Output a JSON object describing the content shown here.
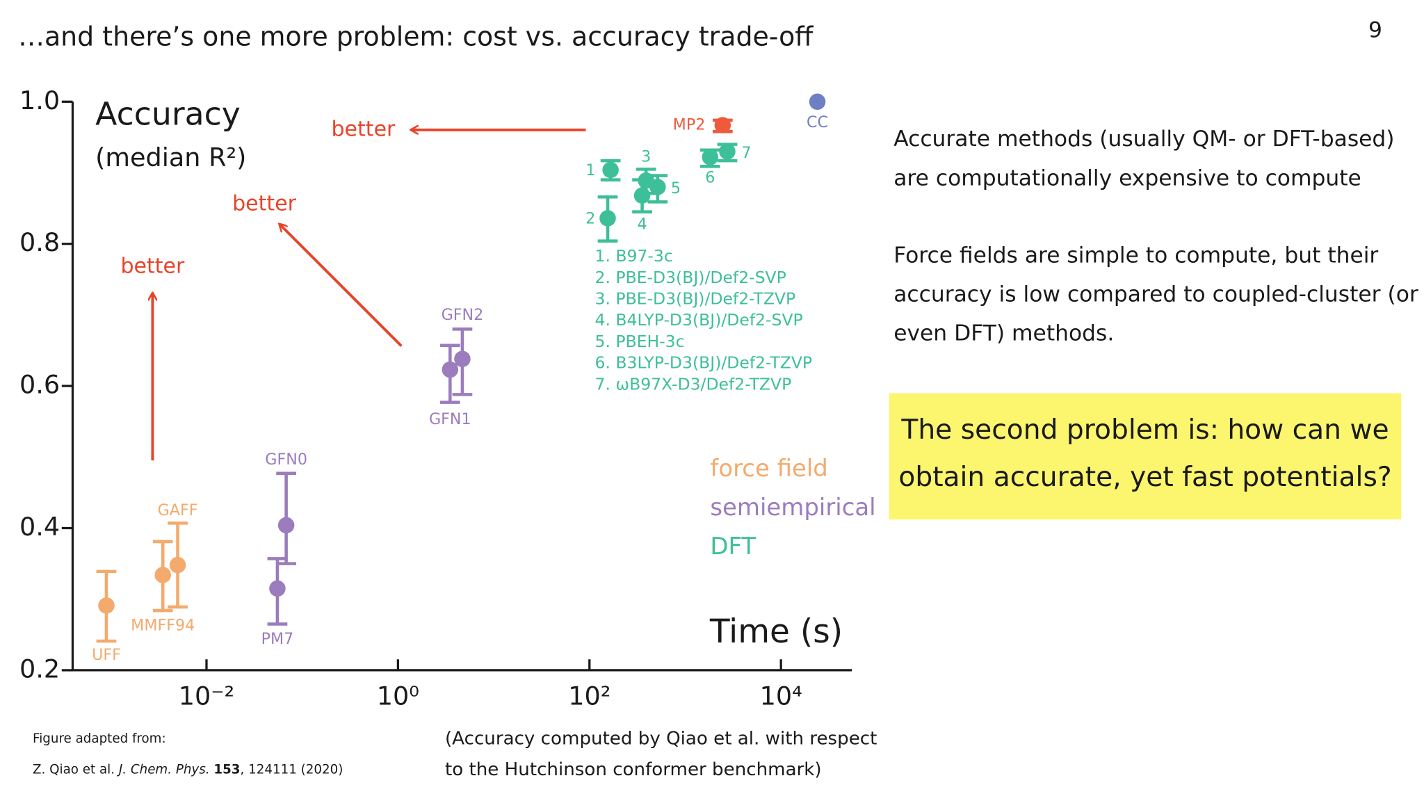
{
  "slide_number": "9",
  "title": "…and there’s one more problem: cost vs. accuracy trade-off",
  "chart_data": {
    "type": "scatter",
    "y_label": "Accuracy",
    "y_sublabel": "(median R²)",
    "x_label": "Time (s)",
    "xscale": "log",
    "xlim": [
      0.0004,
      55000
    ],
    "ylim": [
      0.2,
      1.0
    ],
    "xticks": [
      {
        "value": 0.01,
        "label": "10⁻²"
      },
      {
        "value": 1,
        "label": "10⁰"
      },
      {
        "value": 100,
        "label": "10²"
      },
      {
        "value": 10000,
        "label": "10⁴"
      }
    ],
    "yticks": [
      0.2,
      0.4,
      0.6,
      0.8,
      {
        "value": 1,
        "label": "1.0"
      }
    ],
    "annotations": [
      "better",
      "better",
      "better"
    ],
    "method_key": [
      "1. B97-3c",
      "2. PBE-D3(BJ)/Def2-SVP",
      "3. PBE-D3(BJ)/Def2-TZVP",
      "4. B4LYP-D3(BJ)/Def2-SVP",
      "5. PBEH-3c",
      "6. B3LYP-D3(BJ)/Def2-TZVP",
      "7. ωB97X-D3/Def2-TZVP"
    ],
    "series": [
      {
        "name": "force field",
        "color": "#f4aa6c",
        "labels": [
          "UFF",
          "MMFF94",
          "GAFF"
        ],
        "x": [
          0.0009,
          0.0035,
          0.005
        ],
        "y": [
          0.291,
          0.334,
          0.348
        ],
        "lower": [
          0.241,
          0.284,
          0.289
        ],
        "upper": [
          0.339,
          0.381,
          0.407
        ]
      },
      {
        "name": "semiempirical",
        "color": "#9b7cbd",
        "labels": [
          "PM7",
          "GFN0",
          "GFN1",
          "GFN2"
        ],
        "x": [
          0.055,
          0.068,
          3.5,
          4.7
        ],
        "y": [
          0.315,
          0.404,
          0.623,
          0.638
        ],
        "lower": [
          0.265,
          0.35,
          0.577,
          0.588
        ],
        "upper": [
          0.357,
          0.477,
          0.657,
          0.68
        ]
      },
      {
        "name": "DFT",
        "color": "#3dbf99",
        "labels": [
          "1",
          "2",
          "3",
          "4",
          "5",
          "6",
          "7"
        ],
        "x": [
          166,
          155,
          390,
          355,
          515,
          1820,
          2750
        ],
        "y": [
          0.904,
          0.836,
          0.889,
          0.868,
          0.88,
          0.922,
          0.93
        ],
        "lower": [
          0.89,
          0.804,
          0.871,
          0.845,
          0.859,
          0.909,
          0.917
        ],
        "upper": [
          0.917,
          0.866,
          0.905,
          0.89,
          0.896,
          0.932,
          0.94
        ]
      },
      {
        "color": "#ee5a3c",
        "labels": [
          "MP2"
        ],
        "x": [
          2460
        ],
        "y": [
          0.967
        ],
        "lower": [
          0.958
        ],
        "upper": [
          0.974
        ]
      },
      {
        "color": "#6f7fc4",
        "labels": [
          "CC"
        ],
        "x": [
          24000
        ],
        "y": [
          1.0
        ]
      }
    ]
  },
  "source": {
    "heading": "Figure adapted from:",
    "authors": "Z. Qiao et al.",
    "journal": "J. Chem. Phys.",
    "volume": "153",
    "pages": ", 124111 (2020)"
  },
  "note": [
    "(Accuracy computed by Qiao et al. with respect",
    "to the Hutchinson conformer benchmark)"
  ],
  "text": {
    "paragraph1": [
      "Accurate methods (usually QM- or DFT-based)",
      "are computationally expensive to compute"
    ],
    "paragraph2": [
      "Force fields are simple to compute, but their",
      "accuracy is low compared to coupled-cluster (or",
      "even DFT) methods."
    ]
  },
  "callout": [
    "The second problem is: how can we",
    "obtain accurate, yet fast potentials?"
  ]
}
